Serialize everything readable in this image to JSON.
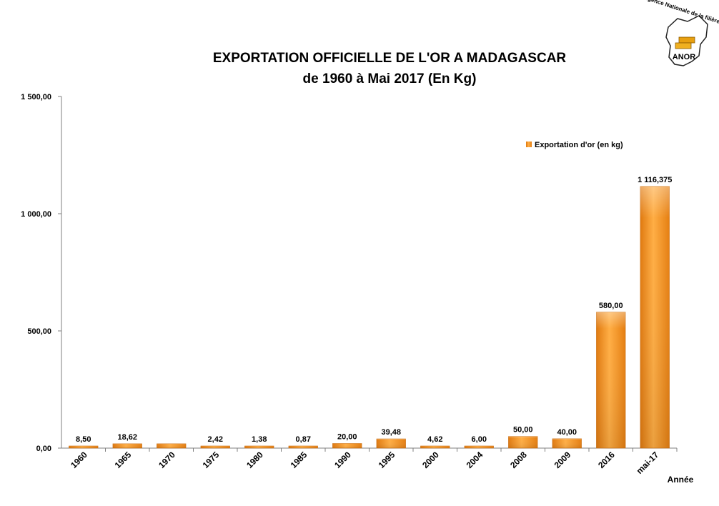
{
  "chart_data": {
    "type": "bar",
    "title_line1": "EXPORTATION OFFICIELLE DE L'OR A MADAGASCAR",
    "title_line2": "de 1960 à Mai 2017 (En Kg)",
    "xlabel": "Année",
    "ylabel": "",
    "ylim": [
      0,
      1500
    ],
    "yticks": [
      0,
      500,
      1000,
      1500
    ],
    "ytick_labels": [
      "0,00",
      "500,00",
      "1 000,00",
      "1 500,00"
    ],
    "categories": [
      "1960",
      "1965",
      "1970",
      "1975",
      "1980",
      "1985",
      "1990",
      "1995",
      "2000",
      "2004",
      "2008",
      "2009",
      "2016",
      "mai-17"
    ],
    "series": [
      {
        "name": "Exportation d'or (en kg)",
        "values": [
          8.5,
          18.62,
          18.62,
          2.42,
          1.38,
          0.87,
          20.0,
          39.48,
          4.62,
          6.0,
          50.0,
          40.0,
          580.0,
          1116.375
        ],
        "labels": [
          "8,50",
          "18,62",
          "",
          "2,42",
          "1,38",
          "0,87",
          "20,00",
          "39,48",
          "4,62",
          "6,00",
          "50,00",
          "40,00",
          "580,00",
          "1 116,375"
        ]
      }
    ],
    "legend_position": "top-right",
    "grid": false,
    "colors": {
      "bar_light": "#ffb347",
      "bar_mid": "#f7941d",
      "bar_dark": "#d9770b",
      "axis": "#7f7f7f"
    }
  },
  "logo": {
    "arc_text": "Agence Nationale de la filière OR",
    "name": "ANOR"
  }
}
